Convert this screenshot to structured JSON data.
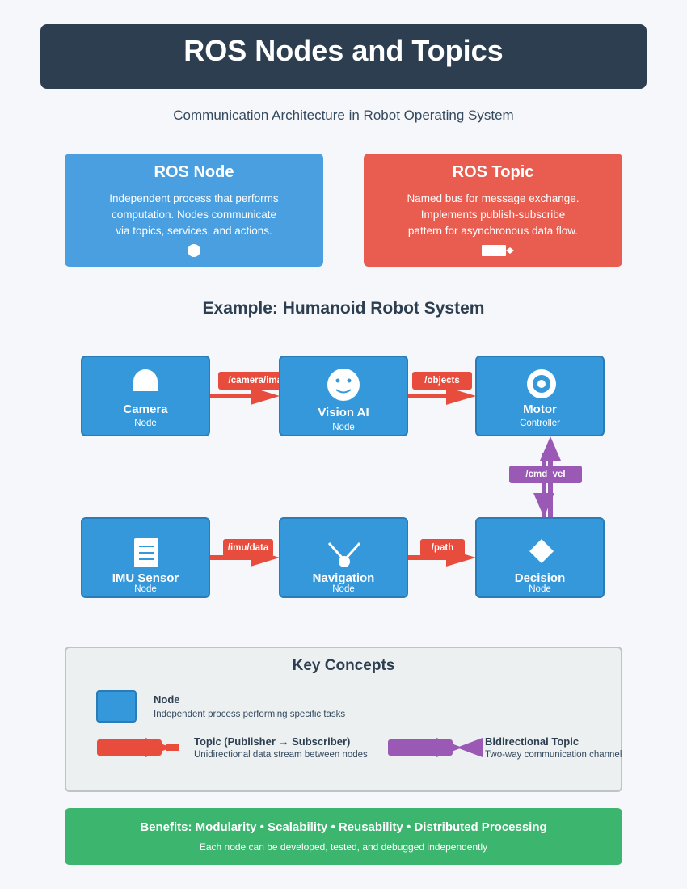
{
  "header": {
    "title": "ROS Nodes and Topics"
  },
  "subtitle": "Communication Architecture in Robot Operating System",
  "cards": {
    "node": {
      "title": "ROS Node",
      "lines": [
        "Independent process that performs",
        "computation. Nodes communicate",
        "via topics, services, and actions."
      ]
    },
    "topic": {
      "title": "ROS Topic",
      "lines": [
        "Named bus for message exchange.",
        "Implements publish-subscribe",
        "pattern for asynchronous data flow."
      ]
    }
  },
  "example": {
    "title": "Example: Humanoid Robot System",
    "nodes": [
      {
        "title": "Camera",
        "sub": "Node",
        "icon": "camera-icon"
      },
      {
        "title": "Vision AI",
        "sub": "Node",
        "icon": "face-icon"
      },
      {
        "title": "Motor",
        "sub": "Controller",
        "icon": "target-icon"
      },
      {
        "title": "IMU Sensor",
        "sub": "Node",
        "icon": "document-icon"
      },
      {
        "title": "Navigation",
        "sub": "Node",
        "icon": "antenna-icon"
      },
      {
        "title": "Decision",
        "sub": "Node",
        "icon": "diamond-icon"
      }
    ],
    "topics": [
      "/camera/image",
      "/objects",
      "/cmd_vel",
      "/imu/data",
      "/path"
    ]
  },
  "key_concepts": {
    "title": "Key Concepts",
    "node": {
      "name": "Node",
      "desc": "Independent process performing specific tasks"
    },
    "topic": {
      "name": "Topic (Publisher → Subscriber)",
      "desc": "Unidirectional data stream between nodes"
    },
    "bidirectional": {
      "name": "Bidirectional Topic",
      "desc": "Two-way communication channel"
    }
  },
  "benefits": {
    "title": "Benefits: Modularity • Scalability • Reusability • Distributed Processing",
    "sub": "Each node can be developed, tested, and debugged independently"
  },
  "colors": {
    "header": "#2c3e50",
    "node": "#3498db",
    "topic": "#e74c3c",
    "bidirectional": "#9b59b6",
    "benefits": "#3cb56e"
  }
}
